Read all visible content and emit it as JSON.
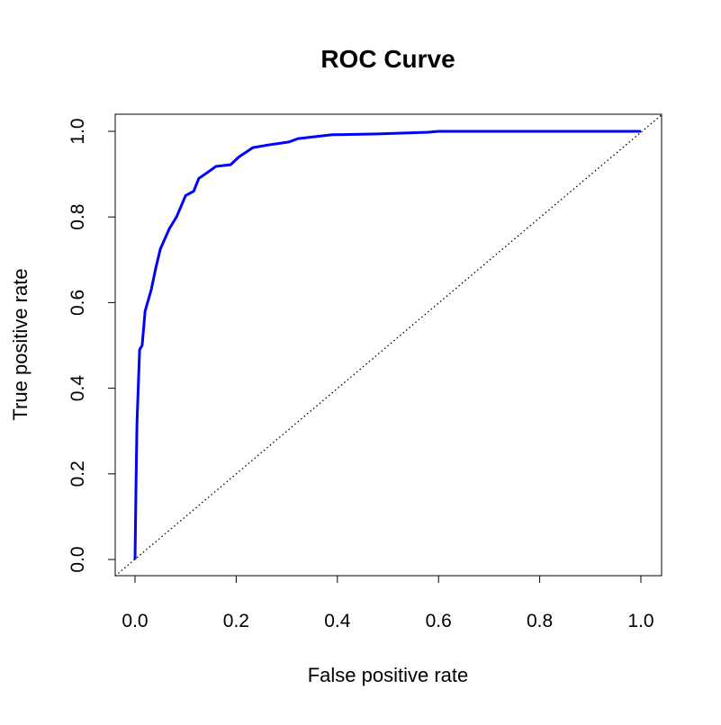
{
  "chart_data": {
    "type": "line",
    "title": "ROC Curve",
    "xlabel": "False positive rate",
    "ylabel": "True positive rate",
    "xlim": [
      -0.04,
      1.04
    ],
    "ylim": [
      -0.04,
      1.04
    ],
    "xticks": [
      "0.0",
      "0.2",
      "0.4",
      "0.6",
      "0.8",
      "1.0"
    ],
    "yticks": [
      "0.0",
      "0.2",
      "0.4",
      "0.6",
      "0.8",
      "1.0"
    ],
    "grid": false,
    "series": [
      {
        "color": "#0000ff",
        "x": [
          0,
          0.002,
          0.004,
          0.009,
          0.014,
          0.02,
          0.032,
          0.041,
          0.05,
          0.068,
          0.082,
          0.1,
          0.116,
          0.126,
          0.142,
          0.16,
          0.189,
          0.205,
          0.233,
          0.263,
          0.304,
          0.322,
          0.39,
          0.48,
          0.58,
          0.6,
          1.0
        ],
        "y": [
          0,
          0.172,
          0.32,
          0.49,
          0.5,
          0.58,
          0.63,
          0.68,
          0.725,
          0.773,
          0.8,
          0.85,
          0.86,
          0.89,
          0.903,
          0.918,
          0.922,
          0.94,
          0.962,
          0.968,
          0.975,
          0.983,
          0.992,
          0.994,
          0.998,
          1.0,
          1.0
        ]
      }
    ],
    "reference_line": {
      "x": [
        0,
        1
      ],
      "y": [
        0,
        1
      ],
      "style": "dotted",
      "color": "#000000"
    }
  }
}
